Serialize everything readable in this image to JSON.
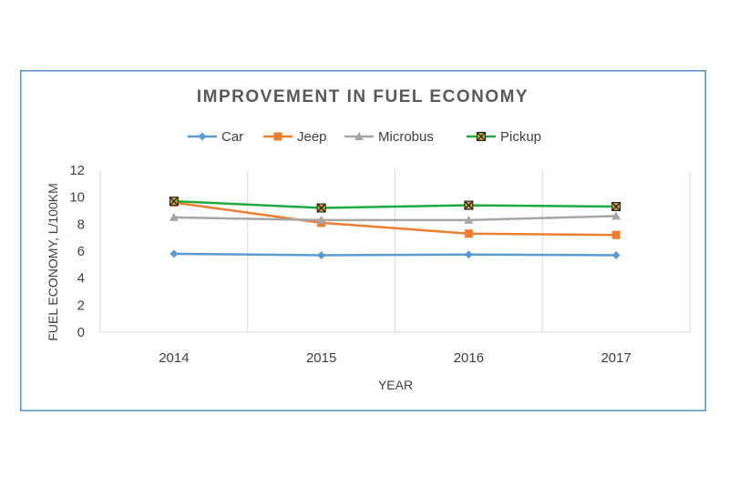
{
  "chart_data": {
    "type": "line",
    "title": "IMPROVEMENT IN FUEL  ECONOMY",
    "xlabel": "YEAR",
    "ylabel": "FUEL ECONOMY, L/100KM",
    "categories": [
      "2014",
      "2015",
      "2016",
      "2017"
    ],
    "ylim": [
      0,
      12
    ],
    "yticks": [
      0,
      2,
      4,
      6,
      8,
      10,
      12
    ],
    "grid": "vertical",
    "legend": "top",
    "series": [
      {
        "name": "Car",
        "values": [
          5.8,
          5.7,
          5.75,
          5.7
        ],
        "color": "#5b9bd5",
        "marker": "diamond"
      },
      {
        "name": "Jeep",
        "values": [
          9.6,
          8.1,
          7.3,
          7.2
        ],
        "color": "#ed7d31",
        "marker": "square"
      },
      {
        "name": "Microbus",
        "values": [
          8.5,
          8.3,
          8.3,
          8.6
        ],
        "color": "#a5a5a5",
        "marker": "triangle"
      },
      {
        "name": "Pickup",
        "values": [
          9.7,
          9.2,
          9.4,
          9.3
        ],
        "color": "#1eab3c",
        "marker": "x-square"
      }
    ]
  }
}
